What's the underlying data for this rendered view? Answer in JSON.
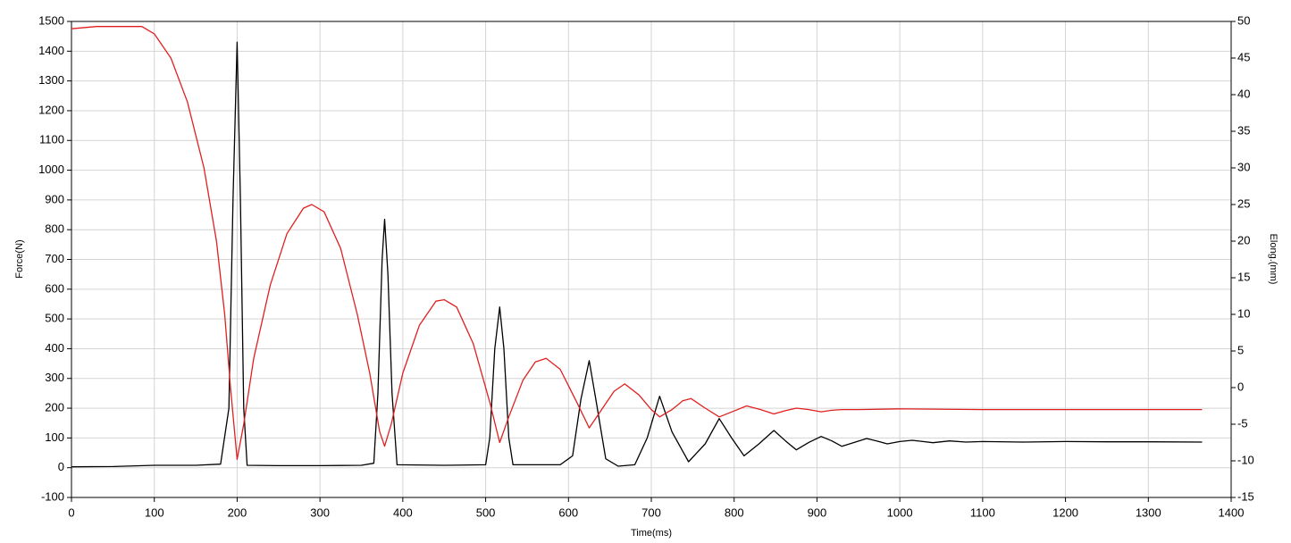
{
  "chart_data": {
    "type": "line",
    "xlabel": "Time(ms)",
    "ylabel": "Force(N)",
    "y2label": "Elong.(mm)",
    "xlim": [
      0,
      1400
    ],
    "xticks": [
      0,
      100,
      200,
      300,
      400,
      500,
      600,
      700,
      800,
      900,
      1000,
      1100,
      1200,
      1300,
      1400
    ],
    "ylim": [
      -100,
      1500
    ],
    "yticks": [
      -100,
      0,
      100,
      200,
      300,
      400,
      500,
      600,
      700,
      800,
      900,
      1000,
      1100,
      1200,
      1300,
      1400,
      1500
    ],
    "y2lim": [
      -15,
      50
    ],
    "y2ticks": [
      -15,
      -10,
      -5,
      0,
      5,
      10,
      15,
      20,
      25,
      30,
      35,
      40,
      45,
      50
    ],
    "grid": true,
    "series": [
      {
        "color": "#000000",
        "x": [
          0,
          50,
          100,
          150,
          180,
          190,
          195,
          200,
          204,
          208,
          212,
          250,
          300,
          350,
          365,
          370,
          375,
          378,
          382,
          387,
          393,
          450,
          500,
          505,
          511,
          517,
          522,
          528,
          533,
          590,
          605,
          615,
          625,
          633,
          645,
          660,
          680,
          695,
          710,
          725,
          745,
          765,
          782,
          797,
          812,
          830,
          848,
          862,
          875,
          890,
          905,
          918,
          930,
          945,
          960,
          972,
          985,
          1000,
          1015,
          1028,
          1040,
          1060,
          1080,
          1100,
          1150,
          1200,
          1250,
          1300,
          1365
        ],
        "values": [
          3,
          4,
          8,
          8,
          12,
          200,
          900,
          1430,
          900,
          200,
          8,
          7,
          7,
          8,
          15,
          250,
          700,
          835,
          650,
          250,
          10,
          8,
          10,
          100,
          400,
          540,
          400,
          100,
          10,
          10,
          40,
          230,
          360,
          230,
          30,
          5,
          10,
          100,
          240,
          120,
          20,
          80,
          165,
          100,
          40,
          80,
          125,
          90,
          60,
          85,
          105,
          90,
          72,
          85,
          98,
          90,
          80,
          88,
          92,
          88,
          84,
          90,
          86,
          88,
          86,
          88,
          87,
          87,
          86
        ]
      },
      {
        "color": "#e02020",
        "axis": "y2",
        "x": [
          0,
          30,
          85,
          100,
          120,
          140,
          160,
          175,
          185,
          192,
          200,
          208,
          220,
          240,
          260,
          280,
          290,
          305,
          325,
          345,
          360,
          372,
          378,
          386,
          400,
          420,
          440,
          450,
          465,
          485,
          505,
          517,
          528,
          545,
          560,
          573,
          590,
          610,
          625,
          640,
          655,
          668,
          685,
          700,
          710,
          725,
          738,
          748,
          765,
          782,
          800,
          815,
          832,
          848,
          860,
          875,
          890,
          905,
          918,
          930,
          950,
          1000,
          1100,
          1200,
          1300,
          1365
        ],
        "values": [
          49,
          49.3,
          49.3,
          48.3,
          45,
          39,
          30,
          20,
          10,
          0,
          -9.8,
          -5,
          4,
          14,
          21,
          24.5,
          25,
          24,
          19,
          10,
          2,
          -6,
          -8,
          -5,
          2,
          8.5,
          11.8,
          12,
          11,
          6,
          -2,
          -7.5,
          -4,
          1,
          3.5,
          4,
          2.5,
          -2,
          -5.5,
          -3,
          -0.5,
          0.5,
          -1,
          -3,
          -4,
          -3,
          -1.8,
          -1.5,
          -2.8,
          -4,
          -3.2,
          -2.5,
          -3,
          -3.6,
          -3.2,
          -2.8,
          -3,
          -3.3,
          -3.1,
          -3,
          -3,
          -2.9,
          -3,
          -3,
          -3,
          -3
        ]
      }
    ]
  }
}
